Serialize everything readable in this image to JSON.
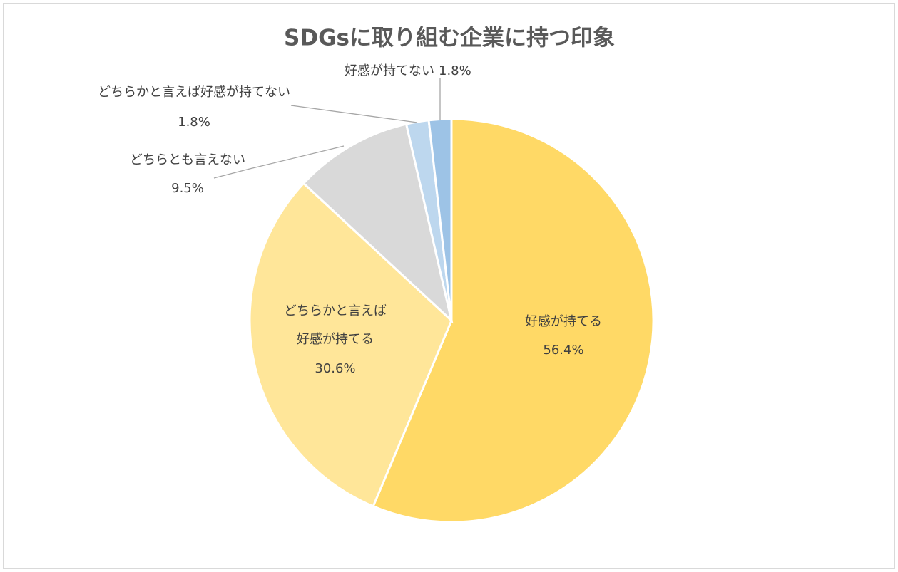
{
  "chart_data": {
    "type": "pie",
    "title": "SDGsに取り組む企業に持つ印象",
    "categories": [
      "好感が持てる",
      "どちらかと言えば好感が持てる",
      "どちらとも言えない",
      "どちらかと言えば好感が持てない",
      "好感が持てない"
    ],
    "values": [
      56.4,
      30.6,
      9.5,
      1.8,
      1.8
    ],
    "value_labels": [
      "56.4%",
      "30.6%",
      "9.5%",
      "1.8%",
      "1.8%"
    ],
    "colors": [
      "#ffd966",
      "#ffe699",
      "#d9d9d9",
      "#bdd7ee",
      "#9dc3e6"
    ]
  }
}
